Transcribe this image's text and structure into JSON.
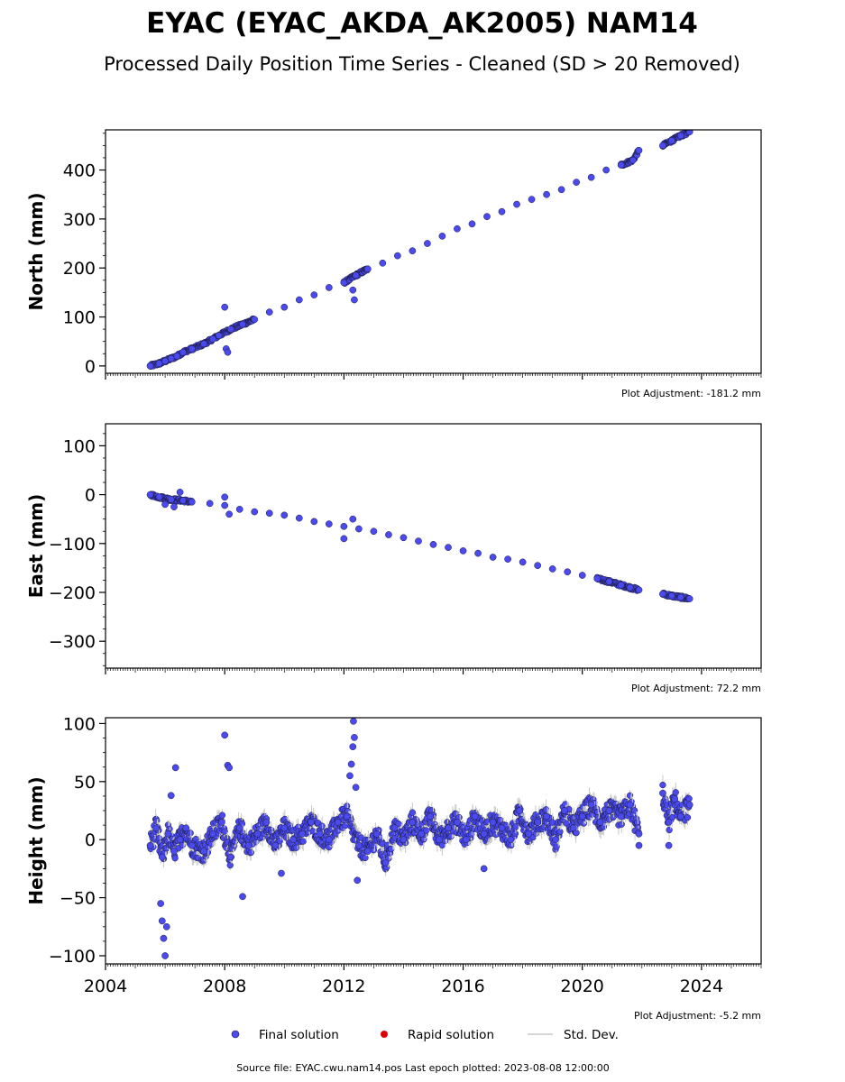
{
  "title": "EYAC (EYAC_AKDA_AK2005) NAM14",
  "subtitle": "Processed Daily Position Time Series - Cleaned (SD > 20 Removed)",
  "legend": {
    "final": "Final solution",
    "rapid": "Rapid solution",
    "std": "Std. Dev."
  },
  "footer": "Source file: EYAC.cwu.nam14.pos  Last epoch plotted: 2023-08-08 12:00:00",
  "colors": {
    "final": "#4a4aee",
    "rapid": "#dd0000",
    "std": "#c8c8c8",
    "edge": "#1a1a40"
  },
  "chart_data": [
    {
      "type": "scatter",
      "ylabel": "North (mm)",
      "adjustment": "Plot Adjustment: -181.2 mm",
      "xlim": [
        2004,
        2026
      ],
      "ylim": [
        -15,
        482
      ],
      "yticks": [
        0,
        100,
        200,
        300,
        400
      ],
      "show_xticklabels": false,
      "series": [
        {
          "name": "Final solution",
          "x": [
            2005.5,
            2005.8,
            2006.0,
            2006.2,
            2006.4,
            2006.6,
            2006.9,
            2007.3,
            2007.6,
            2007.8,
            2008.2,
            2008.6,
            2009.0,
            2009.5,
            2010.0,
            2010.5,
            2011.0,
            2011.5,
            2012.0,
            2012.4,
            2012.8,
            2013.3,
            2013.8,
            2014.3,
            2014.8,
            2015.3,
            2015.8,
            2016.3,
            2016.8,
            2017.3,
            2017.8,
            2018.3,
            2018.8,
            2019.3,
            2019.8,
            2020.3,
            2020.8,
            2021.3,
            2021.7,
            2021.9,
            2022.7,
            2023.0,
            2023.3,
            2023.6
          ],
          "y": [
            0,
            5,
            10,
            15,
            20,
            28,
            35,
            45,
            55,
            62,
            75,
            85,
            95,
            110,
            120,
            135,
            145,
            160,
            170,
            185,
            198,
            210,
            225,
            235,
            250,
            265,
            280,
            290,
            305,
            315,
            330,
            340,
            350,
            360,
            375,
            385,
            400,
            410,
            420,
            440,
            450,
            460,
            470,
            478
          ]
        },
        {
          "name": "Final solution outliers",
          "x": [
            2008.0,
            2008.05,
            2008.1,
            2012.3,
            2012.35
          ],
          "y": [
            120,
            35,
            28,
            155,
            135
          ]
        }
      ]
    },
    {
      "type": "scatter",
      "ylabel": "East (mm)",
      "adjustment": "Plot Adjustment: 72.2 mm",
      "xlim": [
        2004,
        2026
      ],
      "ylim": [
        -355,
        145
      ],
      "yticks": [
        100,
        0,
        -100,
        -200,
        -300
      ],
      "show_xticklabels": false,
      "series": [
        {
          "name": "Final solution",
          "x": [
            2005.5,
            2005.8,
            2006.2,
            2006.6,
            2006.9,
            2007.5,
            2008.0,
            2008.5,
            2009.0,
            2009.5,
            2010.0,
            2010.5,
            2011.0,
            2011.5,
            2012.0,
            2012.5,
            2013.0,
            2013.5,
            2014.0,
            2014.5,
            2015.0,
            2015.5,
            2016.0,
            2016.5,
            2017.0,
            2017.5,
            2018.0,
            2018.5,
            2019.0,
            2019.5,
            2020.0,
            2020.5,
            2020.9,
            2021.3,
            2021.6,
            2021.9,
            2022.7,
            2023.0,
            2023.3,
            2023.6
          ],
          "y": [
            0,
            -5,
            -10,
            -12,
            -15,
            -18,
            -22,
            -30,
            -35,
            -38,
            -42,
            -48,
            -55,
            -60,
            -65,
            -70,
            -75,
            -82,
            -88,
            -95,
            -102,
            -108,
            -115,
            -120,
            -128,
            -132,
            -138,
            -145,
            -152,
            -158,
            -165,
            -172,
            -178,
            -185,
            -190,
            -195,
            -203,
            -207,
            -210,
            -213
          ]
        },
        {
          "name": "Final solution outliers",
          "x": [
            2006.0,
            2006.3,
            2006.5,
            2008.0,
            2008.15,
            2012.0,
            2012.3
          ],
          "y": [
            -20,
            -25,
            5,
            -5,
            -40,
            -90,
            -50
          ]
        }
      ]
    },
    {
      "type": "scatter",
      "ylabel": "Height (mm)",
      "adjustment": "Plot Adjustment: -5.2 mm",
      "xlim": [
        2004,
        2026
      ],
      "ylim": [
        -107,
        105
      ],
      "yticks": [
        100,
        50,
        0,
        -50,
        -100
      ],
      "xticks": [
        2004,
        2008,
        2012,
        2016,
        2020,
        2024
      ],
      "show_xticklabels": true,
      "series": [
        {
          "name": "Final solution",
          "x": [
            2005.5,
            2005.7,
            2005.9,
            2006.1,
            2006.3,
            2006.5,
            2006.7,
            2006.9,
            2007.3,
            2007.6,
            2007.9,
            2008.2,
            2008.5,
            2008.8,
            2009.1,
            2009.4,
            2009.7,
            2010.0,
            2010.3,
            2010.6,
            2010.9,
            2011.2,
            2011.5,
            2011.8,
            2012.1,
            2012.5,
            2012.8,
            2013.1,
            2013.4,
            2013.7,
            2014.0,
            2014.3,
            2014.6,
            2014.9,
            2015.2,
            2015.5,
            2015.8,
            2016.1,
            2016.4,
            2016.7,
            2017.0,
            2017.3,
            2017.6,
            2017.9,
            2018.2,
            2018.5,
            2018.8,
            2019.1,
            2019.4,
            2019.7,
            2020.0,
            2020.3,
            2020.6,
            2020.9,
            2021.3,
            2021.6,
            2021.9,
            2022.7,
            2022.9,
            2023.1,
            2023.3,
            2023.6
          ],
          "y": [
            -5,
            10,
            -15,
            5,
            -10,
            0,
            10,
            -5,
            -10,
            5,
            15,
            -15,
            10,
            -5,
            5,
            15,
            -5,
            10,
            0,
            5,
            15,
            5,
            0,
            15,
            20,
            -5,
            -10,
            5,
            -20,
            10,
            0,
            15,
            5,
            20,
            0,
            10,
            15,
            0,
            20,
            5,
            15,
            10,
            0,
            25,
            5,
            15,
            20,
            0,
            25,
            10,
            20,
            30,
            15,
            25,
            20,
            30,
            5,
            40,
            15,
            35,
            20,
            30
          ]
        },
        {
          "name": "Final solution outliers",
          "x": [
            2005.85,
            2005.9,
            2005.95,
            2006.0,
            2006.05,
            2006.2,
            2006.35,
            2008.0,
            2008.1,
            2008.15,
            2008.6,
            2009.9,
            2012.2,
            2012.25,
            2012.3,
            2012.32,
            2012.35,
            2012.4,
            2012.45,
            2016.7,
            2021.9,
            2022.9
          ],
          "y": [
            -55,
            -70,
            -85,
            -100,
            -75,
            38,
            62,
            90,
            64,
            62,
            -49,
            -29,
            55,
            65,
            80,
            102,
            88,
            45,
            -35,
            -25,
            -5,
            -5
          ]
        }
      ]
    }
  ]
}
